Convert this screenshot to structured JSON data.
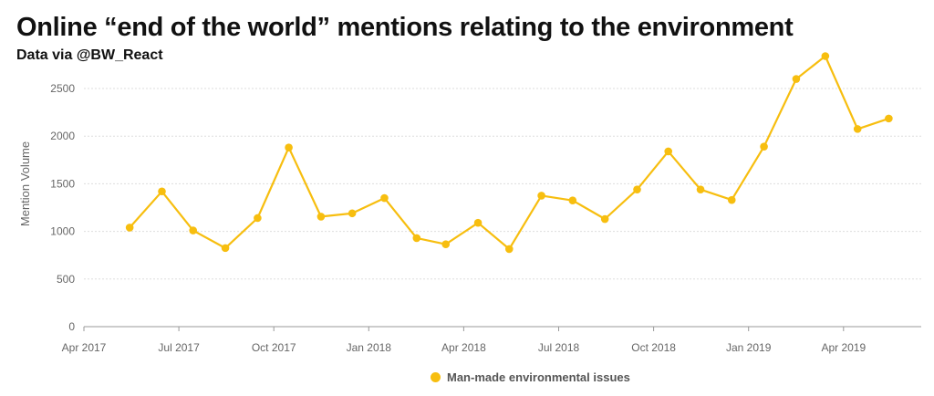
{
  "title": "Online “end of the world” mentions relating to the environment",
  "subtitle": "Data via @BW_React",
  "colors": {
    "series": "#F7BE0F",
    "grid": "#dddddd",
    "axis": "#999999"
  },
  "chart_data": {
    "type": "line",
    "ylabel": "Mention Volume",
    "xlabel": "",
    "ylim": [
      0,
      2500
    ],
    "yticks": [
      "0",
      "500",
      "1000",
      "1500",
      "2000",
      "2500"
    ],
    "xticks": [
      "Apr 2017",
      "Jul 2017",
      "Oct 2017",
      "Jan 2018",
      "Apr 2018",
      "Jul 2018",
      "Oct 2018",
      "Jan 2019",
      "Apr 2019"
    ],
    "grid": true,
    "legend_position": "bottom",
    "series": [
      {
        "name": "Man-made environmental issues",
        "x": [
          "2017-05-15",
          "2017-06-15",
          "2017-07-15",
          "2017-08-15",
          "2017-09-15",
          "2017-10-15",
          "2017-11-15",
          "2017-12-15",
          "2018-01-15",
          "2018-02-15",
          "2018-03-15",
          "2018-04-15",
          "2018-05-15",
          "2018-06-15",
          "2018-07-15",
          "2018-08-15",
          "2018-09-15",
          "2018-10-15",
          "2018-11-15",
          "2018-12-15",
          "2019-01-15",
          "2019-02-15",
          "2019-03-15",
          "2019-04-15",
          "2019-05-15"
        ],
        "values": [
          1040,
          1420,
          1010,
          825,
          1140,
          1880,
          1155,
          1190,
          1350,
          930,
          865,
          1090,
          815,
          1375,
          1325,
          1130,
          1440,
          1840,
          1440,
          1330,
          1890,
          2600,
          2840,
          2075,
          2185
        ]
      }
    ]
  }
}
